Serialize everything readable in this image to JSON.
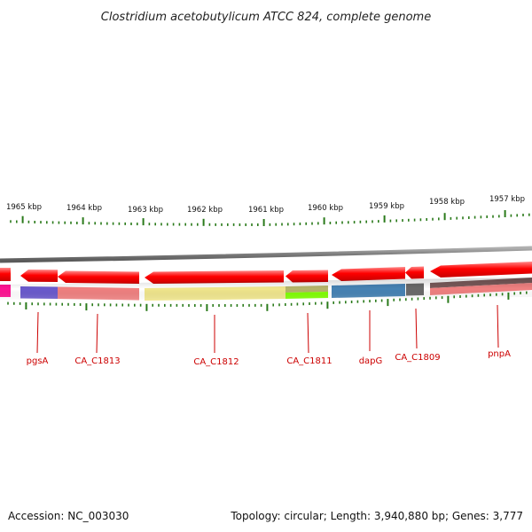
{
  "title": "Clostridium acetobutylicum ATCC 824, complete genome",
  "footer": {
    "accession": "Accession: NC_003030",
    "summary": "Topology: circular; Length: 3,940,880 bp; Genes: 3,777"
  },
  "colors": {
    "tick": "#2a7a1a",
    "backbone": "#808080",
    "gene_red": "#ff0000",
    "label": "#cc0000"
  },
  "kbp_labels": [
    "1965 kbp",
    "1964 kbp",
    "1963 kbp",
    "1962 kbp",
    "1961 kbp",
    "1960 kbp",
    "1959 kbp",
    "1958 kbp",
    "1957 kbp"
  ],
  "genes": [
    {
      "name": "pgsA",
      "strand": "reverse",
      "feature_color": "#6a5acd"
    },
    {
      "name": "CA_C1813",
      "strand": "reverse",
      "feature_color": "#f08080"
    },
    {
      "name": "CA_C1812",
      "strand": "reverse",
      "feature_color": "#f0e68c"
    },
    {
      "name": "CA_C1811",
      "strand": "reverse",
      "feature_color": "#9acd32"
    },
    {
      "name": "dapG",
      "strand": "reverse",
      "feature_color": "#4682b4"
    },
    {
      "name": "CA_C1809",
      "strand": "reverse",
      "feature_color": "#696969"
    },
    {
      "name": "pnpA",
      "strand": "reverse",
      "feature_color": "#f08080"
    }
  ]
}
